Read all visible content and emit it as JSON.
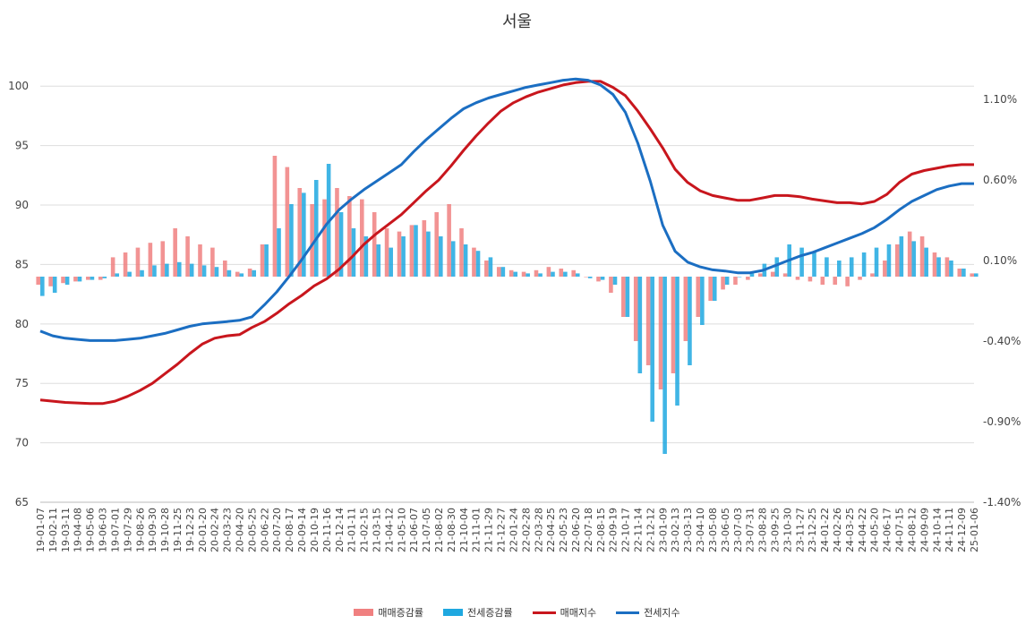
{
  "chart_data": {
    "type": "bar+line",
    "title": "서울",
    "legend_position": "bottom",
    "grid": true,
    "left_axis": {
      "ylim": [
        65,
        101.6
      ],
      "ticks": [
        "65",
        "70",
        "75",
        "80",
        "85",
        "90",
        "95",
        "100"
      ]
    },
    "right_axis": {
      "ylim": [
        -1.4,
        1.3
      ],
      "ticks": [
        "-1.40%",
        "-0.90%",
        "-0.40%",
        "0.10%",
        "0.60%",
        "1.10%"
      ]
    },
    "x_tick_labels": [
      "19-01-07",
      "19-02-11",
      "19-03-11",
      "19-04-08",
      "19-05-06",
      "19-06-03",
      "19-07-01",
      "19-07-29",
      "19-08-26",
      "19-09-30",
      "19-10-28",
      "19-11-25",
      "19-12-23",
      "20-01-20",
      "20-02-24",
      "20-03-23",
      "20-04-20",
      "20-05-25",
      "20-06-22",
      "20-07-20",
      "20-08-17",
      "20-09-14",
      "20-10-19",
      "20-11-16",
      "20-12-14",
      "21-01-11",
      "21-02-15",
      "21-03-15",
      "21-04-12",
      "21-05-10",
      "21-06-07",
      "21-07-05",
      "21-08-02",
      "21-08-30",
      "21-10-04",
      "21-11-01",
      "21-11-29",
      "21-12-27",
      "22-01-24",
      "22-02-28",
      "22-03-28",
      "22-04-25",
      "22-05-23",
      "22-06-20",
      "22-07-18",
      "22-08-15",
      "22-09-19",
      "22-10-17",
      "22-11-14",
      "22-12-12",
      "23-01-09",
      "23-02-13",
      "23-03-13",
      "23-04-10",
      "23-05-08",
      "23-06-05",
      "23-07-03",
      "23-07-31",
      "23-08-28",
      "23-09-25",
      "23-10-30",
      "23-11-27",
      "23-12-25",
      "24-01-22",
      "24-02-26",
      "24-03-25",
      "24-04-22",
      "24-05-20",
      "24-06-17",
      "24-07-15",
      "24-08-12",
      "24-09-09",
      "24-10-14",
      "24-11-11",
      "24-12-09",
      "25-01-06"
    ],
    "series": [
      {
        "name": "매매증감률",
        "type": "bar",
        "axis": "right",
        "color": "#f08080",
        "values": [
          -0.05,
          -0.06,
          -0.04,
          -0.03,
          -0.02,
          -0.02,
          0.12,
          0.15,
          0.18,
          0.21,
          0.22,
          0.3,
          0.25,
          0.2,
          0.18,
          0.1,
          0.03,
          0.05,
          0.2,
          0.75,
          0.68,
          0.55,
          0.45,
          0.48,
          0.55,
          0.5,
          0.48,
          0.4,
          0.3,
          0.28,
          0.32,
          0.35,
          0.4,
          0.45,
          0.3,
          0.18,
          0.1,
          0.06,
          0.04,
          0.03,
          0.04,
          0.06,
          0.05,
          0.04,
          0.0,
          -0.03,
          -0.1,
          -0.25,
          -0.4,
          -0.55,
          -0.7,
          -0.6,
          -0.4,
          -0.25,
          -0.15,
          -0.08,
          -0.05,
          -0.02,
          0.02,
          0.03,
          0.02,
          -0.02,
          -0.03,
          -0.05,
          -0.05,
          -0.06,
          -0.02,
          0.02,
          0.1,
          0.2,
          0.28,
          0.25,
          0.15,
          0.12,
          0.05,
          0.02
        ]
      },
      {
        "name": "전세증감률",
        "type": "bar",
        "axis": "right",
        "color": "#1fa8e0",
        "values": [
          -0.12,
          -0.1,
          -0.05,
          -0.03,
          -0.02,
          -0.01,
          0.02,
          0.03,
          0.04,
          0.07,
          0.08,
          0.09,
          0.08,
          0.07,
          0.06,
          0.04,
          0.02,
          0.04,
          0.2,
          0.3,
          0.45,
          0.52,
          0.6,
          0.7,
          0.4,
          0.3,
          0.25,
          0.2,
          0.18,
          0.25,
          0.32,
          0.28,
          0.25,
          0.22,
          0.2,
          0.16,
          0.12,
          0.06,
          0.03,
          0.02,
          0.02,
          0.03,
          0.03,
          0.02,
          -0.01,
          -0.02,
          -0.05,
          -0.25,
          -0.6,
          -0.9,
          -1.1,
          -0.8,
          -0.55,
          -0.3,
          -0.15,
          -0.05,
          0.0,
          0.02,
          0.08,
          0.12,
          0.2,
          0.18,
          0.15,
          0.12,
          0.1,
          0.12,
          0.15,
          0.18,
          0.2,
          0.25,
          0.22,
          0.18,
          0.12,
          0.1,
          0.05,
          0.02
        ]
      },
      {
        "name": "매매지수",
        "type": "line",
        "axis": "left",
        "color": "#c8161d",
        "values": [
          73.6,
          73.5,
          73.4,
          73.35,
          73.3,
          73.3,
          73.5,
          73.9,
          74.4,
          75.0,
          75.8,
          76.6,
          77.5,
          78.3,
          78.8,
          79.0,
          79.1,
          79.7,
          80.2,
          80.9,
          81.7,
          82.4,
          83.2,
          83.8,
          84.6,
          85.6,
          86.7,
          87.6,
          88.4,
          89.2,
          90.2,
          91.2,
          92.1,
          93.3,
          94.6,
          95.8,
          96.9,
          97.9,
          98.6,
          99.1,
          99.5,
          99.8,
          100.1,
          100.3,
          100.4,
          100.4,
          99.9,
          99.2,
          97.9,
          96.4,
          94.8,
          93.0,
          91.9,
          91.2,
          90.8,
          90.6,
          90.4,
          90.4,
          90.6,
          90.8,
          90.8,
          90.7,
          90.5,
          90.35,
          90.2,
          90.2,
          90.1,
          90.3,
          90.9,
          91.9,
          92.6,
          92.9,
          93.1,
          93.3,
          93.4,
          93.4
        ]
      },
      {
        "name": "전세지수",
        "type": "line",
        "axis": "left",
        "color": "#1b6ec2",
        "values": [
          79.4,
          79.0,
          78.8,
          78.7,
          78.6,
          78.6,
          78.6,
          78.7,
          78.8,
          79.0,
          79.2,
          79.5,
          79.8,
          80.0,
          80.1,
          80.2,
          80.3,
          80.6,
          81.6,
          82.7,
          84.0,
          85.4,
          86.9,
          88.4,
          89.6,
          90.5,
          91.3,
          92.0,
          92.7,
          93.4,
          94.5,
          95.5,
          96.4,
          97.3,
          98.1,
          98.6,
          99.0,
          99.3,
          99.6,
          99.9,
          100.1,
          100.3,
          100.5,
          100.6,
          100.5,
          100.1,
          99.3,
          97.8,
          95.2,
          92.0,
          88.3,
          86.1,
          85.2,
          84.8,
          84.55,
          84.45,
          84.3,
          84.3,
          84.5,
          84.9,
          85.3,
          85.7,
          86.0,
          86.4,
          86.8,
          87.2,
          87.6,
          88.1,
          88.8,
          89.6,
          90.3,
          90.8,
          91.3,
          91.6,
          91.8,
          91.8
        ]
      }
    ]
  }
}
